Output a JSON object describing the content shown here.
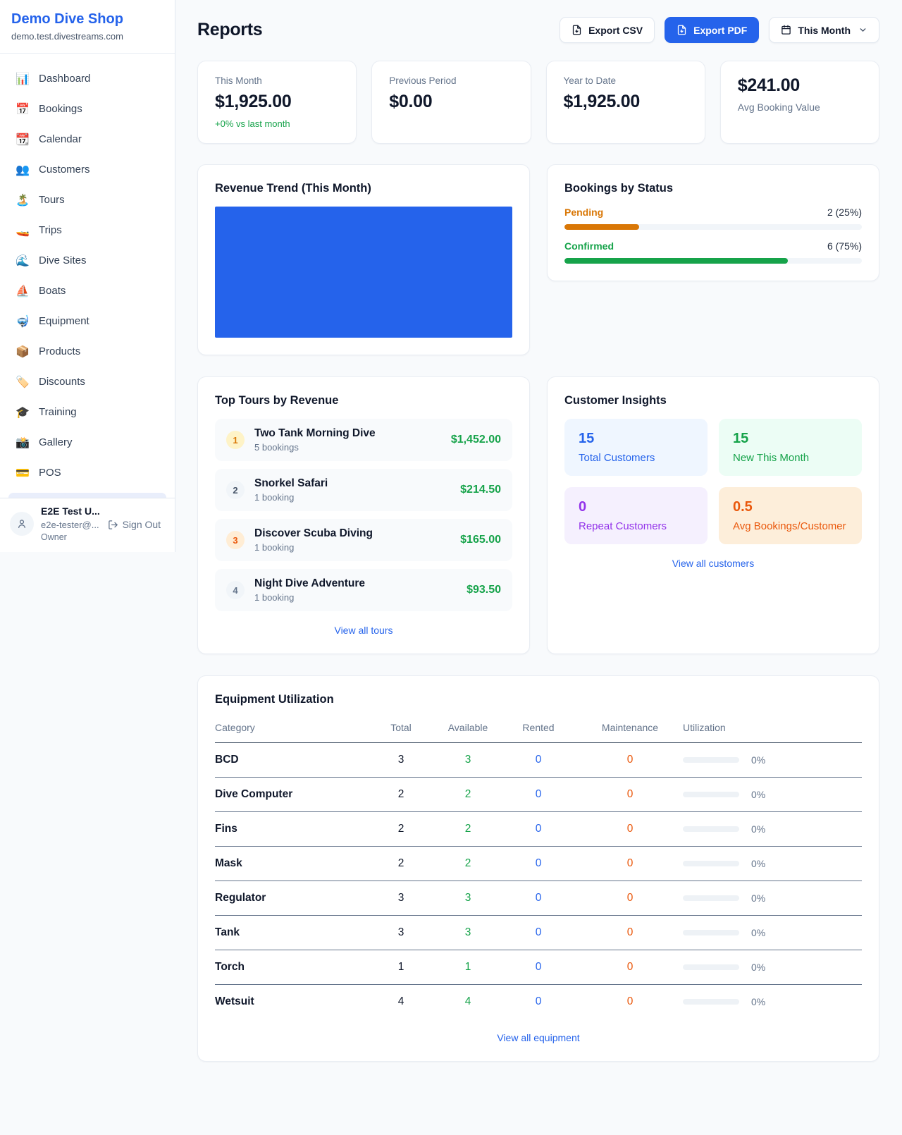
{
  "colors": {
    "accent_blue": "#2563eb",
    "green": "#16a34a",
    "pending_orange": "#d97706",
    "deep_orange": "#ea580c",
    "purple": "#9333ea",
    "muted_gray": "#64748b",
    "bar_track": "#f1f5f9"
  },
  "brand": {
    "name": "Demo Dive Shop",
    "domain": "demo.test.divestreams.com"
  },
  "sidebar": {
    "items": [
      {
        "label": "Dashboard",
        "glyph": "📊",
        "icon_name": "bar-chart-icon"
      },
      {
        "label": "Bookings",
        "glyph": "📅",
        "icon_name": "calendar-date-icon"
      },
      {
        "label": "Calendar",
        "glyph": "📆",
        "icon_name": "tear-off-calendar-icon"
      },
      {
        "label": "Customers",
        "glyph": "👥",
        "icon_name": "people-icon"
      },
      {
        "label": "Tours",
        "glyph": "🏝️",
        "icon_name": "island-icon"
      },
      {
        "label": "Trips",
        "glyph": "🚤",
        "icon_name": "speedboat-icon"
      },
      {
        "label": "Dive Sites",
        "glyph": "🌊",
        "icon_name": "wave-icon"
      },
      {
        "label": "Boats",
        "glyph": "⛵",
        "icon_name": "sailboat-icon"
      },
      {
        "label": "Equipment",
        "glyph": "🤿",
        "icon_name": "diving-mask-icon"
      },
      {
        "label": "Products",
        "glyph": "📦",
        "icon_name": "package-icon"
      },
      {
        "label": "Discounts",
        "glyph": "🏷️",
        "icon_name": "tag-icon"
      },
      {
        "label": "Training",
        "glyph": "🎓",
        "icon_name": "graduation-cap-icon"
      },
      {
        "label": "Gallery",
        "glyph": "📸",
        "icon_name": "camera-icon"
      },
      {
        "label": "POS",
        "glyph": "💳",
        "icon_name": "credit-card-icon"
      }
    ],
    "user": {
      "name": "E2E Test U...",
      "email": "e2e-tester@...",
      "role": "Owner",
      "sign_out_label": "Sign Out"
    }
  },
  "header": {
    "title": "Reports",
    "export_csv_label": "Export CSV",
    "export_pdf_label": "Export PDF",
    "period_label": "This Month"
  },
  "stats": [
    {
      "label": "This Month",
      "value": "$1,925.00",
      "delta": "+0% vs last month"
    },
    {
      "label": "Previous Period",
      "value": "$0.00"
    },
    {
      "label": "Year to Date",
      "value": "$1,925.00"
    },
    {
      "label": "Avg Booking Value",
      "value": "$241.00",
      "value_first": true
    }
  ],
  "revenue_trend": {
    "title": "Revenue Trend (This Month)",
    "fill_color": "#2563eb"
  },
  "bookings_by_status": {
    "title": "Bookings by Status",
    "items": [
      {
        "label": "Pending",
        "value": "2 (25%)",
        "pct": 25,
        "color": "#d97706"
      },
      {
        "label": "Confirmed",
        "value": "6 (75%)",
        "pct": 75,
        "color": "#16a34a"
      }
    ]
  },
  "top_tours": {
    "title": "Top Tours by Revenue",
    "link_label": "View all tours",
    "items": [
      {
        "rank": "1",
        "name": "Two Tank Morning Dive",
        "bookings": "5 bookings",
        "revenue": "$1,452.00",
        "badge_bg": "#fef3c7",
        "badge_fg": "#d97706"
      },
      {
        "rank": "2",
        "name": "Snorkel Safari",
        "bookings": "1 booking",
        "revenue": "$214.50",
        "badge_bg": "#f1f5f9",
        "badge_fg": "#475569"
      },
      {
        "rank": "3",
        "name": "Discover Scuba Diving",
        "bookings": "1 booking",
        "revenue": "$165.00",
        "badge_bg": "#ffedd5",
        "badge_fg": "#ea580c"
      },
      {
        "rank": "4",
        "name": "Night Dive Adventure",
        "bookings": "1 booking",
        "revenue": "$93.50",
        "badge_bg": "#f1f5f9",
        "badge_fg": "#64748b"
      }
    ]
  },
  "customer_insights": {
    "title": "Customer Insights",
    "link_label": "View all customers",
    "tiles": [
      {
        "value": "15",
        "label": "Total Customers",
        "bg": "#eff6ff",
        "fg": "#2563eb"
      },
      {
        "value": "15",
        "label": "New This Month",
        "bg": "#ecfdf5",
        "fg": "#16a34a"
      },
      {
        "value": "0",
        "label": "Repeat Customers",
        "bg": "#f5f0fe",
        "fg": "#9333ea"
      },
      {
        "value": "0.5",
        "label": "Avg Bookings/Customer",
        "bg": "#fdeeda",
        "fg": "#ea580c"
      }
    ]
  },
  "equipment": {
    "title": "Equipment Utilization",
    "link_label": "View all equipment",
    "columns": [
      "Category",
      "Total",
      "Available",
      "Rented",
      "Maintenance",
      "Utilization"
    ],
    "rows": [
      {
        "category": "BCD",
        "total": "3",
        "available": "3",
        "rented": "0",
        "maintenance": "0",
        "utilization": "0%",
        "utilization_pct": 0
      },
      {
        "category": "Dive Computer",
        "total": "2",
        "available": "2",
        "rented": "0",
        "maintenance": "0",
        "utilization": "0%",
        "utilization_pct": 0
      },
      {
        "category": "Fins",
        "total": "2",
        "available": "2",
        "rented": "0",
        "maintenance": "0",
        "utilization": "0%",
        "utilization_pct": 0
      },
      {
        "category": "Mask",
        "total": "2",
        "available": "2",
        "rented": "0",
        "maintenance": "0",
        "utilization": "0%",
        "utilization_pct": 0
      },
      {
        "category": "Regulator",
        "total": "3",
        "available": "3",
        "rented": "0",
        "maintenance": "0",
        "utilization": "0%",
        "utilization_pct": 0
      },
      {
        "category": "Tank",
        "total": "3",
        "available": "3",
        "rented": "0",
        "maintenance": "0",
        "utilization": "0%",
        "utilization_pct": 0
      },
      {
        "category": "Torch",
        "total": "1",
        "available": "1",
        "rented": "0",
        "maintenance": "0",
        "utilization": "0%",
        "utilization_pct": 0
      },
      {
        "category": "Wetsuit",
        "total": "4",
        "available": "4",
        "rented": "0",
        "maintenance": "0",
        "utilization": "0%",
        "utilization_pct": 0
      }
    ]
  },
  "chart_data": [
    {
      "type": "area",
      "title": "Revenue Trend (This Month)",
      "description": "Plot area rendered as one solid filled blue block; no axis ticks, labels, gridlines or data labels are visible",
      "fill_color": "#2563eb",
      "x": [],
      "values": []
    },
    {
      "type": "bar",
      "orientation": "horizontal",
      "title": "Bookings by Status",
      "categories": [
        "Pending",
        "Confirmed"
      ],
      "values": [
        2,
        6
      ],
      "percent": [
        25,
        75
      ],
      "colors": [
        "#d97706",
        "#16a34a"
      ],
      "xlim": [
        0,
        100
      ]
    }
  ]
}
